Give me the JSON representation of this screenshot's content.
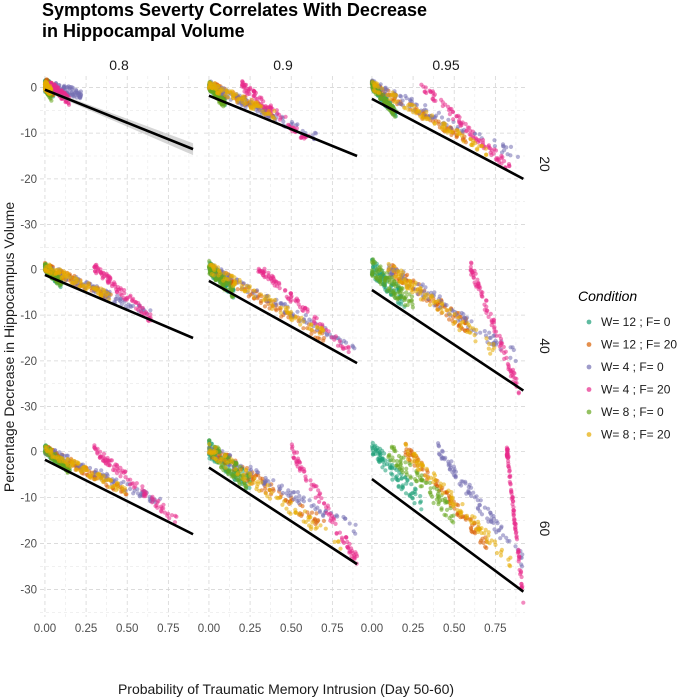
{
  "chart_data": {
    "type": "scatter",
    "title_lines": [
      "Symptoms Severty Correlates With Decrease",
      "in Hippocampal Volume"
    ],
    "xlabel": "Probability of Traumatic Memory Intrusion (Day 50-60)",
    "ylabel": "Percentage Decrease in Hippocampus Volume",
    "col_facets": [
      "0.8",
      "0.9",
      "0.95"
    ],
    "row_facets": [
      "20",
      "40",
      "60"
    ],
    "xlim": [
      -0.03,
      0.93
    ],
    "ylim": [
      -36,
      2.5
    ],
    "x_ticks": [
      0,
      0.25,
      0.5,
      0.75
    ],
    "x_tick_labels": [
      "0.00",
      "0.25",
      "0.50",
      "0.75"
    ],
    "y_ticks": [
      0,
      -10,
      -20,
      -30
    ],
    "y_tick_labels": [
      "0",
      "-10",
      "-20",
      "-30"
    ],
    "grid": true,
    "legend_title": "Condition",
    "legend_position": "right",
    "series": [
      {
        "name": "W= 12 ; F= 0",
        "color": "#1B9E77"
      },
      {
        "name": "W= 12 ; F= 20",
        "color": "#D95F02"
      },
      {
        "name": "W= 4 ; F= 0",
        "color": "#7570B3"
      },
      {
        "name": "W= 4 ; F= 20",
        "color": "#E7298A"
      },
      {
        "name": "W= 8 ; F= 0",
        "color": "#66A61E"
      },
      {
        "name": "W= 8 ; F= 20",
        "color": "#E6AB02"
      }
    ],
    "panels": [
      {
        "row": 0,
        "col": 0,
        "fit": [
          [
            0,
            -0.5
          ],
          [
            0.9,
            -13.5
          ]
        ],
        "ribbon": true,
        "ranges": [
          [
            0,
            0.05,
            -0.5,
            1.5
          ],
          [
            0,
            0.05,
            -0.5,
            1.5
          ],
          [
            0.02,
            0.22,
            -1.5,
            1
          ],
          [
            0.03,
            0.15,
            -3,
            1
          ],
          [
            0,
            0.04,
            -2,
            1
          ],
          [
            0,
            0.04,
            -1,
            1
          ]
        ]
      },
      {
        "row": 0,
        "col": 1,
        "fit": [
          [
            0,
            -1.8
          ],
          [
            0.9,
            -15
          ]
        ],
        "ribbon": false,
        "ranges": [
          [
            0,
            0.1,
            -3,
            1
          ],
          [
            0,
            0.4,
            -6,
            1
          ],
          [
            0,
            0.65,
            -11,
            1
          ],
          [
            0.2,
            0.62,
            -12,
            1
          ],
          [
            0,
            0.1,
            -4,
            1
          ],
          [
            0,
            0.4,
            -6,
            1
          ]
        ]
      },
      {
        "row": 0,
        "col": 2,
        "fit": [
          [
            0,
            -2.5
          ],
          [
            0.92,
            -20
          ]
        ],
        "ribbon": false,
        "ranges": [
          [
            0,
            0.15,
            -6,
            1
          ],
          [
            0,
            0.6,
            -12,
            1
          ],
          [
            0,
            0.9,
            -15,
            1.2
          ],
          [
            0.3,
            0.85,
            -18,
            1
          ],
          [
            0,
            0.15,
            -6,
            1
          ],
          [
            0,
            0.7,
            -14,
            1
          ]
        ]
      },
      {
        "row": 1,
        "col": 0,
        "fit": [
          [
            0,
            -1.2
          ],
          [
            0.9,
            -15
          ]
        ],
        "ribbon": false,
        "ranges": [
          [
            0,
            0.1,
            -3,
            1
          ],
          [
            0,
            0.4,
            -6,
            1
          ],
          [
            0,
            0.65,
            -10,
            1
          ],
          [
            0.3,
            0.65,
            -11,
            1
          ],
          [
            0,
            0.1,
            -3,
            1
          ],
          [
            0,
            0.4,
            -6,
            1
          ]
        ]
      },
      {
        "row": 1,
        "col": 1,
        "fit": [
          [
            0,
            -2.5
          ],
          [
            0.9,
            -20.5
          ]
        ],
        "ribbon": false,
        "ranges": [
          [
            0,
            0.15,
            -5,
            1.5
          ],
          [
            0,
            0.7,
            -15,
            1.2
          ],
          [
            0,
            0.9,
            -17,
            1
          ],
          [
            0.3,
            0.85,
            -18,
            1
          ],
          [
            0,
            0.15,
            -5,
            1.5
          ],
          [
            0,
            0.7,
            -14,
            1.2
          ]
        ]
      },
      {
        "row": 1,
        "col": 2,
        "fit": [
          [
            0,
            -4.5
          ],
          [
            0.92,
            -26.5
          ]
        ],
        "ribbon": false,
        "ranges": [
          [
            0,
            0.2,
            -7,
            2
          ],
          [
            0.1,
            0.6,
            -13,
            1.5
          ],
          [
            0.1,
            0.88,
            -19,
            1.5
          ],
          [
            0.6,
            0.9,
            -27,
            1.5
          ],
          [
            0,
            0.25,
            -8,
            2
          ],
          [
            0.1,
            0.75,
            -18,
            1.5
          ]
        ]
      },
      {
        "row": 2,
        "col": 0,
        "fit": [
          [
            0,
            -1.8
          ],
          [
            0.9,
            -18
          ]
        ],
        "ribbon": false,
        "ranges": [
          [
            0,
            0.15,
            -4,
            1
          ],
          [
            0,
            0.5,
            -9,
            1
          ],
          [
            0,
            0.7,
            -11,
            1
          ],
          [
            0.3,
            0.8,
            -15,
            1
          ],
          [
            0,
            0.15,
            -4,
            1
          ],
          [
            0,
            0.5,
            -9,
            1
          ]
        ]
      },
      {
        "row": 2,
        "col": 1,
        "fit": [
          [
            0,
            -3.5
          ],
          [
            0.9,
            -24.5
          ]
        ],
        "ribbon": false,
        "ranges": [
          [
            0,
            0.25,
            -7,
            2
          ],
          [
            0,
            0.7,
            -16,
            1.5
          ],
          [
            0,
            0.9,
            -17,
            1.2
          ],
          [
            0.5,
            0.9,
            -24,
            1.5
          ],
          [
            0,
            0.25,
            -7,
            2
          ],
          [
            0,
            0.8,
            -20,
            1.5
          ]
        ]
      },
      {
        "row": 2,
        "col": 2,
        "fit": [
          [
            0,
            -6
          ],
          [
            0.92,
            -30.5
          ]
        ],
        "ribbon": false,
        "ranges": [
          [
            0,
            0.3,
            -11,
            2
          ],
          [
            0.2,
            0.7,
            -20,
            1.5
          ],
          [
            0.4,
            0.92,
            -24,
            1.5
          ],
          [
            0.82,
            0.92,
            -32,
            1.5
          ],
          [
            0.1,
            0.5,
            -14,
            2
          ],
          [
            0.2,
            0.85,
            -24,
            1.5
          ]
        ]
      }
    ]
  }
}
